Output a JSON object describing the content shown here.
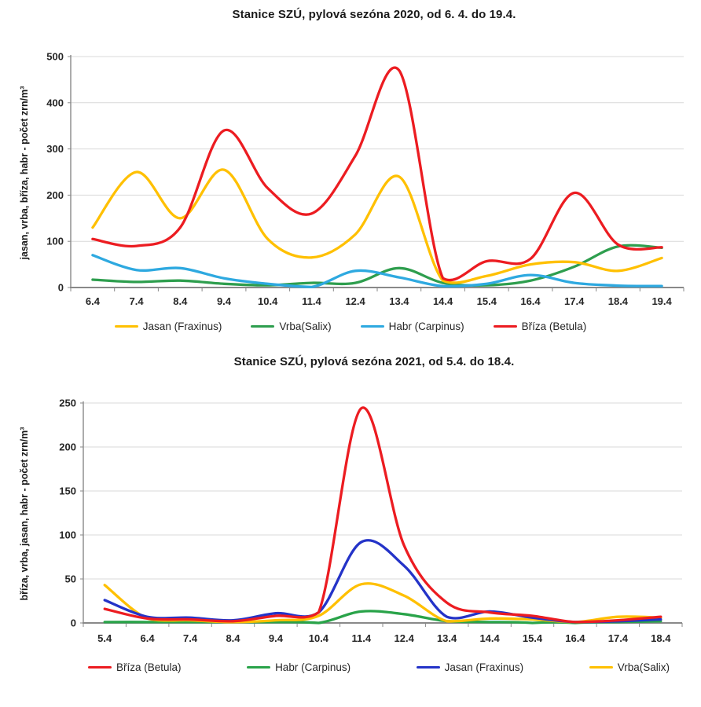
{
  "chart_data": [
    {
      "type": "line",
      "title": "Stanice SZÚ, pylová sezóna 2020, od 6. 4. do 19.4.",
      "ylabel": "jasan, vrba, bříza, habr -  počet zrn/m³",
      "xlabel": "",
      "categories": [
        "6.4",
        "7.4",
        "8.4",
        "9.4",
        "10.4",
        "11.4",
        "12.4",
        "13.4",
        "14.4",
        "15.4",
        "16.4",
        "17.4",
        "18.4",
        "19.4"
      ],
      "ylim": [
        0,
        500
      ],
      "yticks": [
        0,
        100,
        200,
        300,
        400,
        500
      ],
      "grid": "horizontal",
      "legend_position": "bottom",
      "smooth_lines": true,
      "series": [
        {
          "name": "Jasan (Fraxinus)",
          "color": "#FFC000",
          "values": [
            130,
            250,
            150,
            255,
            105,
            65,
            115,
            240,
            15,
            25,
            50,
            55,
            36,
            64
          ]
        },
        {
          "name": "Vrba(Salix)",
          "color": "#2E9E4E",
          "values": [
            17,
            12,
            15,
            8,
            5,
            10,
            10,
            42,
            10,
            5,
            15,
            45,
            89,
            86
          ]
        },
        {
          "name": "Habr (Carpinus)",
          "color": "#2EA9E0",
          "values": [
            70,
            38,
            42,
            20,
            8,
            1,
            36,
            22,
            3,
            8,
            27,
            10,
            4,
            3
          ]
        },
        {
          "name": "Bříza (Betula)",
          "color": "#EC1C21",
          "values": [
            105,
            90,
            130,
            340,
            215,
            160,
            285,
            470,
            20,
            57,
            62,
            205,
            93,
            87
          ]
        }
      ],
      "draw_order": [
        1,
        2,
        0,
        3
      ]
    },
    {
      "type": "line",
      "title": "Stanice SZÚ, pylová sezóna 2021, od 5.4. do 18.4.",
      "ylabel": "bříza, vrba, jasan, habr -  počet zrn/m³",
      "xlabel": "",
      "categories": [
        "5.4",
        "6.4",
        "7.4",
        "8.4",
        "9.4",
        "10.4",
        "11.4",
        "12.4",
        "13.4",
        "14.4",
        "15.4",
        "16.4",
        "17.4",
        "18.4"
      ],
      "ylim": [
        0,
        250
      ],
      "yticks": [
        0,
        50,
        100,
        150,
        200,
        250
      ],
      "grid": "horizontal",
      "legend_position": "bottom",
      "smooth_lines": true,
      "series": [
        {
          "name": "Bříza (Betula)",
          "color": "#EC1C21",
          "values": [
            16,
            5,
            4,
            2,
            8,
            12,
            244,
            88,
            23,
            12,
            8,
            1,
            3,
            7
          ]
        },
        {
          "name": "Habr (Carpinus)",
          "color": "#29A349",
          "values": [
            1,
            1,
            1,
            1,
            1,
            0,
            13,
            10,
            2,
            1,
            0,
            0,
            1,
            2
          ]
        },
        {
          "name": "Jasan (Fraxinus)",
          "color": "#2433C8",
          "values": [
            26,
            7,
            6,
            3,
            11,
            12,
            92,
            65,
            7,
            13,
            6,
            1,
            2,
            4
          ]
        },
        {
          "name": "Vrba(Salix)",
          "color": "#FFC000",
          "values": [
            43,
            5,
            3,
            1,
            3,
            8,
            44,
            31,
            2,
            5,
            4,
            1,
            7,
            6
          ]
        }
      ],
      "draw_order": [
        1,
        3,
        2,
        0
      ]
    }
  ]
}
